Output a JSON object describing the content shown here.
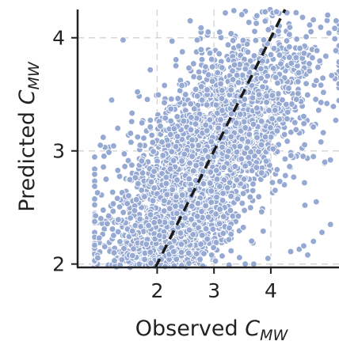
{
  "chart_data": {
    "type": "scatter",
    "title": "",
    "xlabel": {
      "main": "Observed ",
      "symbol": "C",
      "subscript": "MW"
    },
    "ylabel": {
      "main": "Predicted ",
      "symbol": "C",
      "subscript": "MW"
    },
    "xlim": [
      0.6,
      5.2
    ],
    "ylim": [
      1.97,
      4.25
    ],
    "xticks": [
      2,
      3,
      4
    ],
    "yticks": [
      2,
      3,
      4
    ],
    "x_tick_labels": [
      "2",
      "3",
      "4"
    ],
    "y_tick_labels": [
      "2",
      "3",
      "4"
    ],
    "grid": true,
    "legend": "none",
    "point_color": "#95a9d3",
    "point_edge_color": "#ffffff",
    "reference_line": {
      "style": "dashed",
      "color": "#1a1a1a",
      "x": [
        1.97,
        4.25
      ],
      "y": [
        1.97,
        4.25
      ]
    },
    "point_clusters": [
      {
        "n": 2600,
        "x_mean": 2.9,
        "x_sd": 0.95,
        "slope": 0.42,
        "intercept": 1.75,
        "y_sd": 0.42,
        "x_min": 0.9,
        "x_max": 5.2
      },
      {
        "n": 700,
        "x_mean": 2.2,
        "x_sd": 0.45,
        "slope": 0.15,
        "intercept": 1.85,
        "y_sd": 0.17,
        "x_min": 0.95,
        "x_max": 3.3
      }
    ],
    "points": [
      {
        "x": 1.4,
        "y": 3.98
      },
      {
        "x": 1.2,
        "y": 3.45
      },
      {
        "x": 1.05,
        "y": 3.12
      },
      {
        "x": 1.0,
        "y": 3.05
      },
      {
        "x": 1.1,
        "y": 2.75
      },
      {
        "x": 0.95,
        "y": 2.63
      },
      {
        "x": 0.98,
        "y": 2.23
      },
      {
        "x": 1.3,
        "y": 2.58
      },
      {
        "x": 3.55,
        "y": 2.0
      },
      {
        "x": 3.7,
        "y": 2.0
      },
      {
        "x": 3.95,
        "y": 2.05
      },
      {
        "x": 4.35,
        "y": 2.11
      },
      {
        "x": 4.5,
        "y": 2.13
      },
      {
        "x": 4.58,
        "y": 2.16
      },
      {
        "x": 4.65,
        "y": 2.08
      },
      {
        "x": 4.75,
        "y": 2.2
      },
      {
        "x": 4.9,
        "y": 2.28
      },
      {
        "x": 5.05,
        "y": 2.35
      },
      {
        "x": 4.6,
        "y": 2.52
      },
      {
        "x": 4.8,
        "y": 2.55
      },
      {
        "x": 4.95,
        "y": 2.9
      },
      {
        "x": 5.05,
        "y": 2.92
      },
      {
        "x": 4.75,
        "y": 2.95
      },
      {
        "x": 3.9,
        "y": 4.23
      },
      {
        "x": 4.1,
        "y": 4.23
      },
      {
        "x": 5.0,
        "y": 4.2
      },
      {
        "x": 5.15,
        "y": 4.15
      },
      {
        "x": 3.2,
        "y": 4.22
      },
      {
        "x": 3.35,
        "y": 4.24
      },
      {
        "x": 3.1,
        "y": 4.05
      }
    ]
  }
}
